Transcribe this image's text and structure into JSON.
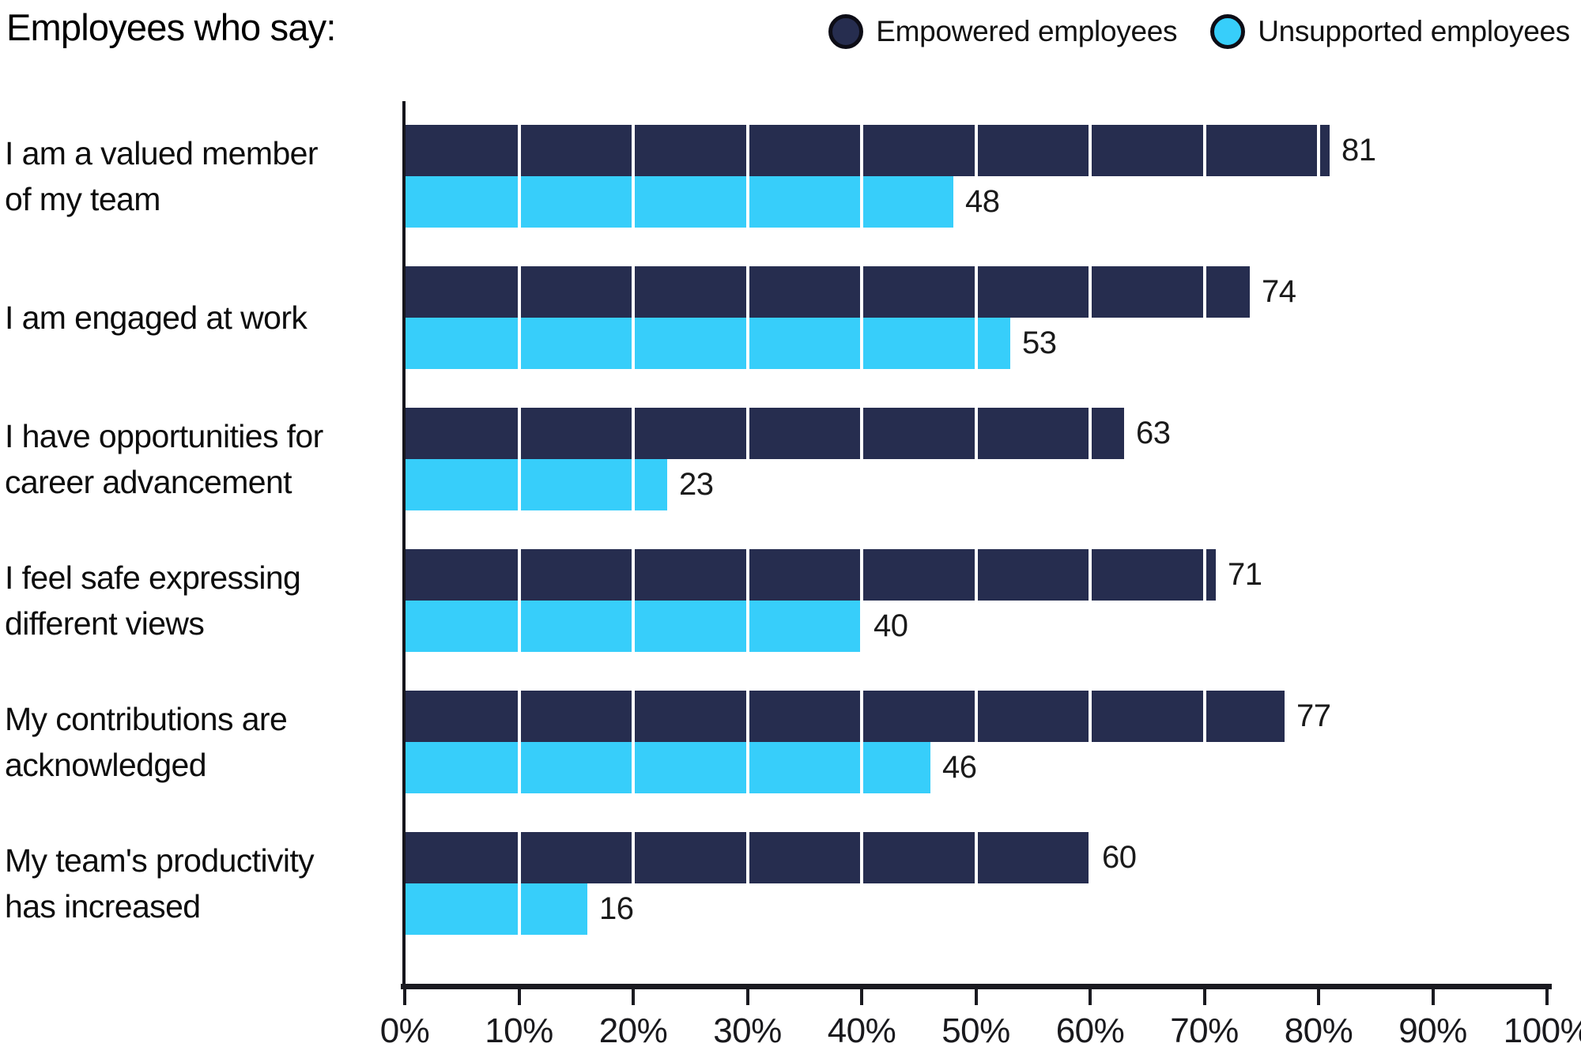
{
  "title": "Employees who say:",
  "legend": {
    "items": [
      {
        "label": "Empowered employees",
        "color": "#262D4F"
      },
      {
        "label": "Unsupported employees",
        "color": "#37CEFA"
      }
    ]
  },
  "chart_data": {
    "type": "bar",
    "orientation": "horizontal",
    "title": "Employees who say:",
    "unit": "percent",
    "categories": [
      "I am a valued member of my team",
      "I am engaged at work",
      "I have opportunities for career advancement",
      "I feel safe expressing different views",
      "My contributions are acknowledged",
      "My team's productivity has increased"
    ],
    "category_lines": [
      [
        "I am a valued member",
        "of my team"
      ],
      [
        "I am engaged at work"
      ],
      [
        "I have opportunities for",
        "career advancement"
      ],
      [
        "I feel safe expressing",
        "different views"
      ],
      [
        "My contributions are",
        "acknowledged"
      ],
      [
        "My team's productivity",
        "has increased"
      ]
    ],
    "series": [
      {
        "name": "Empowered employees",
        "color": "#262D4F",
        "values": [
          81,
          74,
          63,
          71,
          77,
          60
        ]
      },
      {
        "name": "Unsupported employees",
        "color": "#37CEFA",
        "values": [
          48,
          53,
          23,
          40,
          46,
          16
        ]
      }
    ],
    "xlim": [
      0,
      100
    ],
    "x_ticks": [
      "0%",
      "10%",
      "20%",
      "30%",
      "40%",
      "50%",
      "60%",
      "70%",
      "80%",
      "90%",
      "100%"
    ],
    "grid": "vertical white lines every 10%, drawn over bars",
    "legend_position": "top-right"
  },
  "colors": {
    "empowered": "#262D4F",
    "unsupported": "#37CEFA",
    "gridline": "#FFFFFF",
    "axis": "#1A1A20",
    "text": "#000000"
  }
}
